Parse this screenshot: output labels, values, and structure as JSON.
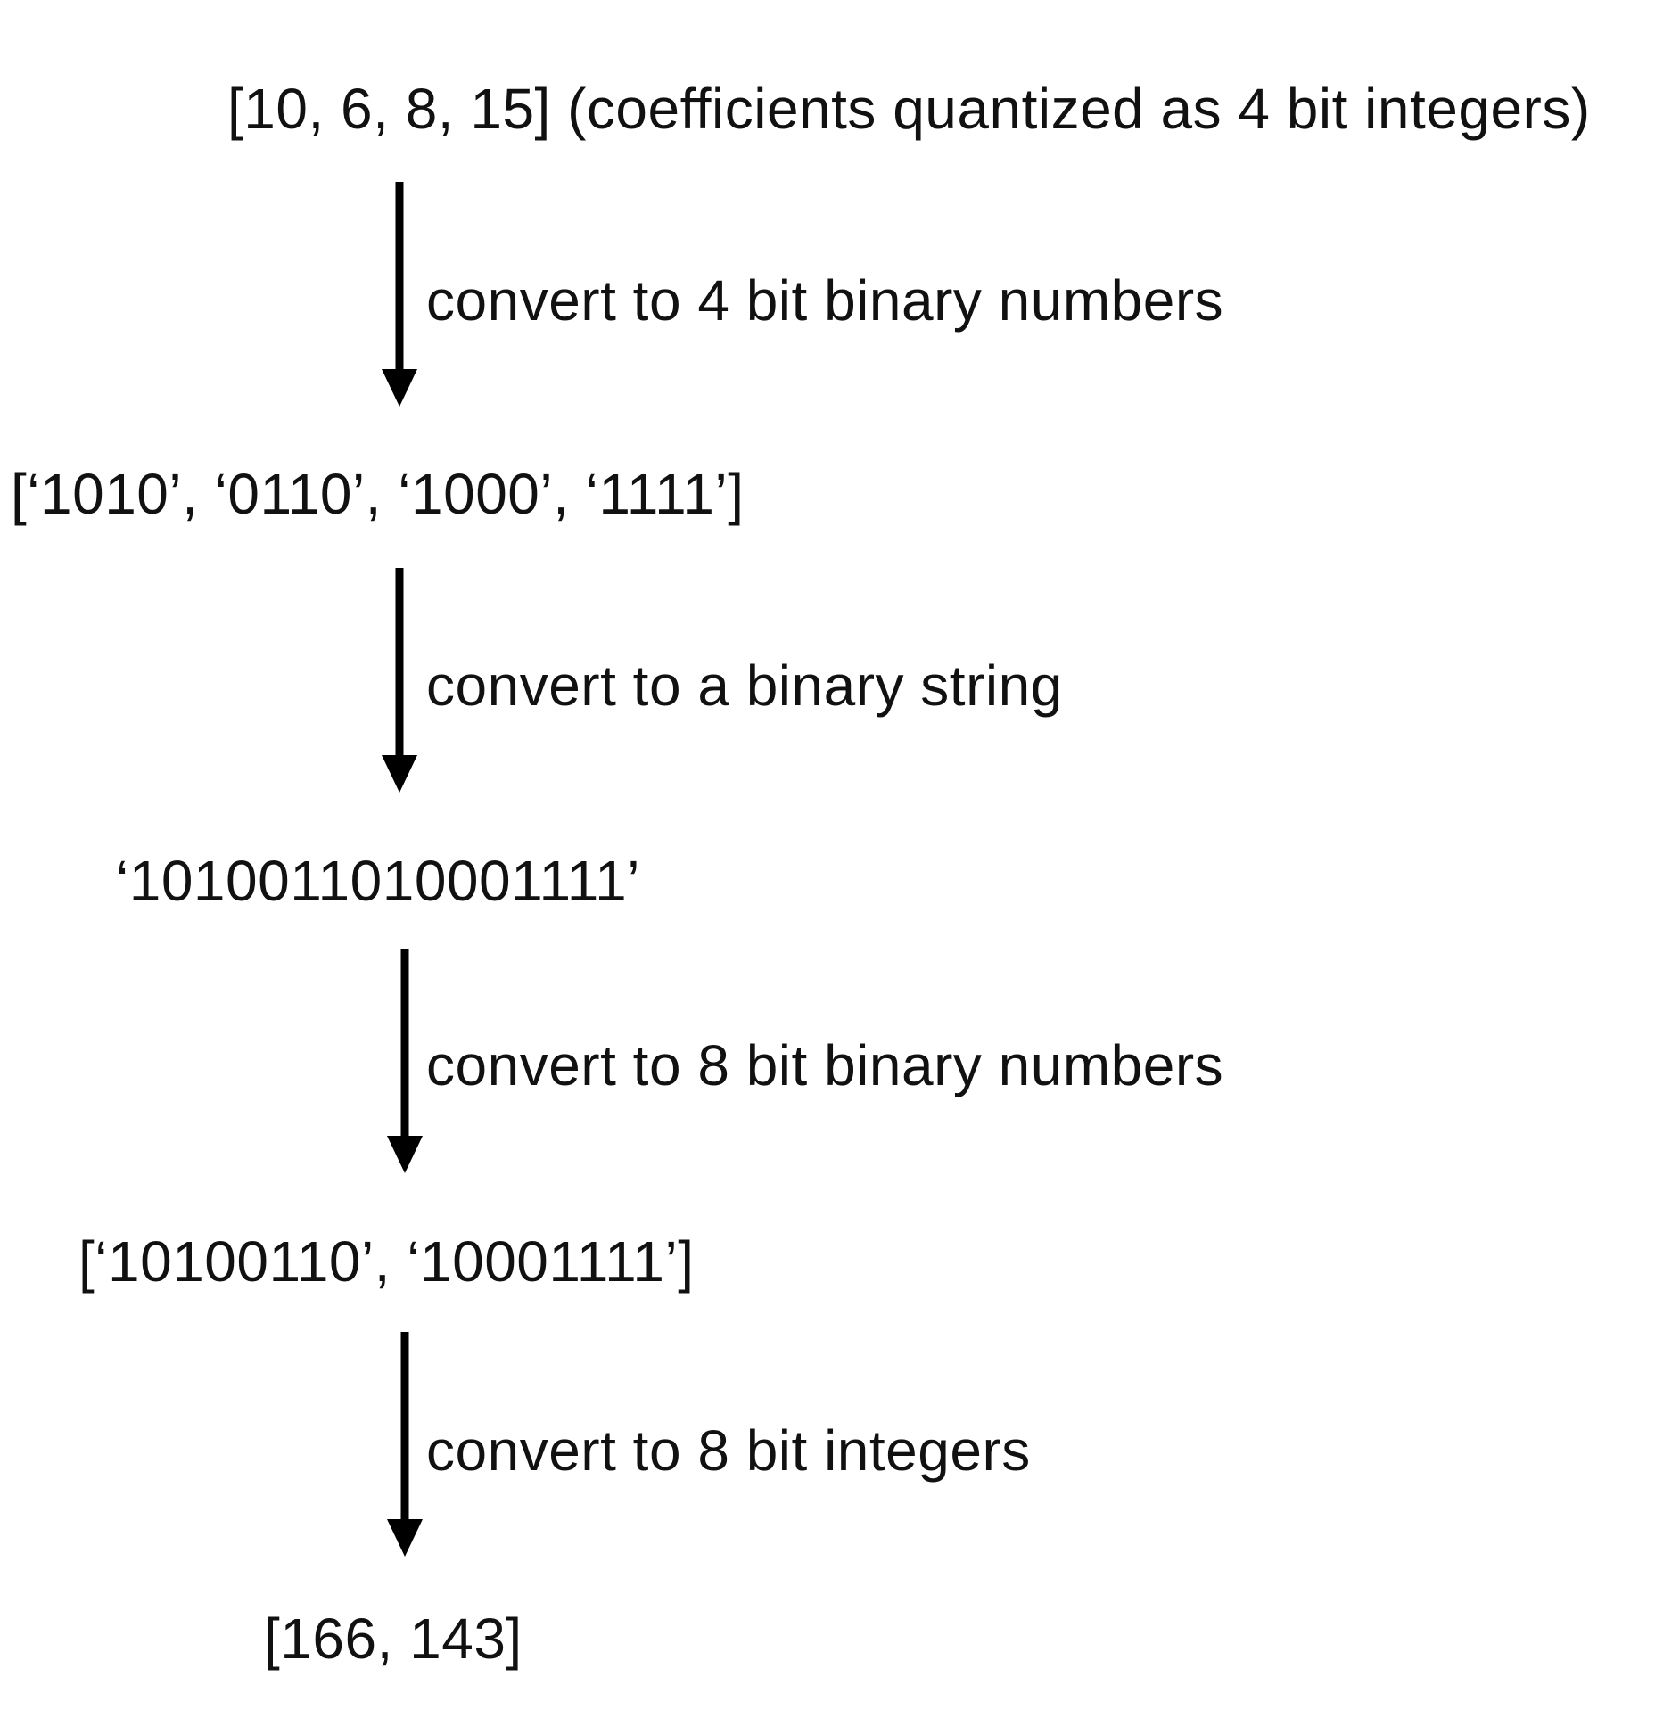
{
  "diagram": {
    "stages": [
      {
        "text": "[10, 6, 8, 15] (coefficients quantized as 4 bit integers)"
      },
      {
        "text": "[‘1010’, ‘0110’, ‘1000’, ‘1111’]"
      },
      {
        "text": "‘1010011010001111’"
      },
      {
        "text": "[‘10100110’, ‘10001111’]"
      },
      {
        "text": "[166, 143]"
      }
    ],
    "steps": [
      {
        "label": "convert to 4 bit binary numbers"
      },
      {
        "label": "convert to a binary string"
      },
      {
        "label": "convert to 8 bit binary numbers"
      },
      {
        "label": "convert to 8 bit integers"
      }
    ]
  }
}
